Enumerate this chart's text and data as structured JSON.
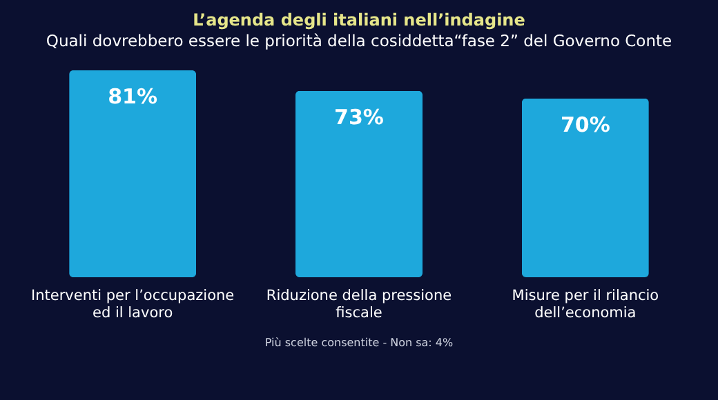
{
  "chart_data": {
    "type": "bar",
    "title": "L’agenda degli italiani nell’indagine",
    "subtitle": "Quali dovrebbero essere le priorità della cosiddetta“fase 2” del Governo Conte",
    "categories": [
      "Interventi per l’occupazione ed il lavoro",
      "Riduzione della pressione fiscale",
      "Misure per il rilancio dell’economia"
    ],
    "values": [
      81,
      73,
      70
    ],
    "color": "#1ea8dc",
    "value_labels": [
      "81%",
      "73%",
      "70%"
    ],
    "annotations": [
      "Più scelte consentite - Non sa: 4%"
    ]
  }
}
